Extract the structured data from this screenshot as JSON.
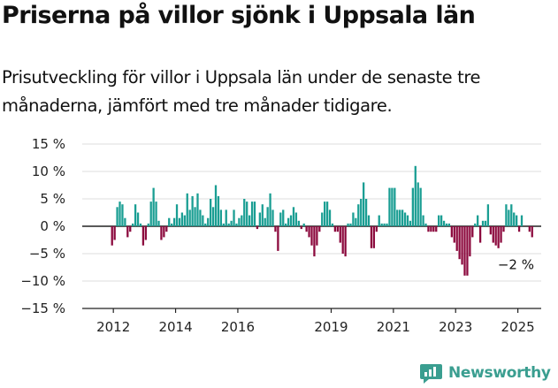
{
  "title": "Priserna på villor sjönk i Uppsala län",
  "subtitle": "Prisutveckling för villor i Uppsala län under de senaste tre månaderna, jämfört med tre månader tidigare.",
  "brand": {
    "name": "Newsworthy"
  },
  "colors": {
    "positive": "#1a9e93",
    "negative": "#8c0a3e",
    "grid": "#dcdcdc",
    "axis": "#222222",
    "brand": "#3a9e90"
  },
  "chart_data": {
    "type": "bar",
    "title": "",
    "xlabel": "",
    "ylabel": "",
    "ylim": [
      -15,
      15
    ],
    "yticks": [
      15,
      10,
      5,
      0,
      -5,
      -10,
      -15
    ],
    "ytick_labels": [
      "15 %",
      "10 %",
      "5 %",
      "0 %",
      "−5 %",
      "−10 %",
      "−15 %"
    ],
    "xticks": [
      {
        "label": "2012",
        "x": "2012-01"
      },
      {
        "label": "2014",
        "x": "2014-01"
      },
      {
        "label": "2016",
        "x": "2016-01"
      },
      {
        "label": "2019",
        "x": "2019-01"
      },
      {
        "label": "2021",
        "x": "2021-01"
      },
      {
        "label": "2023",
        "x": "2023-01"
      },
      {
        "label": "2025",
        "x": "2025-01"
      }
    ],
    "grid": true,
    "last_value_label": "−2 %",
    "series": [
      {
        "x_start": "2011-12",
        "values": [
          -3.5,
          -2.5,
          3.5,
          4.5,
          4,
          1.5,
          -2,
          -1,
          0.5,
          4,
          2.5,
          0.5,
          -3.5,
          -2.5,
          0.5,
          4.5,
          7,
          4.5,
          1,
          -2.5,
          -2,
          -1,
          1.5,
          0.5,
          1.5,
          4,
          1.5,
          2.5,
          2,
          6,
          3,
          5.5,
          3.5,
          6,
          3,
          2,
          0.5,
          1.5,
          5,
          3.5,
          7.5,
          5.5,
          3,
          0.5,
          3,
          0.5,
          1,
          3,
          0.5,
          1.5,
          2,
          5,
          4.5,
          2,
          4.5,
          4.5,
          -0.5,
          2.5,
          4,
          1.5,
          3.5,
          6,
          3,
          -1,
          -4.5,
          2.5,
          3,
          0.5,
          1.5,
          2,
          3.5,
          2.5,
          1,
          -0.5,
          0.5,
          -1,
          -2,
          -3.5,
          -5.5,
          -3.5,
          -1,
          2.5,
          4.5,
          4.5,
          3,
          0.5,
          -1,
          -1,
          -3,
          -5,
          -5.5,
          0.5,
          0.5,
          2.5,
          1.5,
          4,
          5,
          8,
          5,
          2,
          -4,
          -4,
          -1,
          2,
          0.5,
          0.5,
          0.5,
          7,
          7,
          7,
          3,
          3,
          3,
          2.5,
          2,
          1,
          7,
          11,
          8,
          7,
          2,
          0.5,
          -1,
          -1,
          -1,
          -1,
          2,
          2,
          1,
          0.5,
          0.5,
          -2,
          -3,
          -4.5,
          -6,
          -7,
          -9,
          -9,
          -5.5,
          -2,
          0.5,
          2,
          -3,
          1,
          1,
          4,
          -1.5,
          -3,
          -3.5,
          -4,
          -3,
          -1,
          4,
          3,
          4,
          2.5,
          2,
          -1,
          2,
          0,
          0,
          -1,
          -2
        ]
      }
    ]
  }
}
